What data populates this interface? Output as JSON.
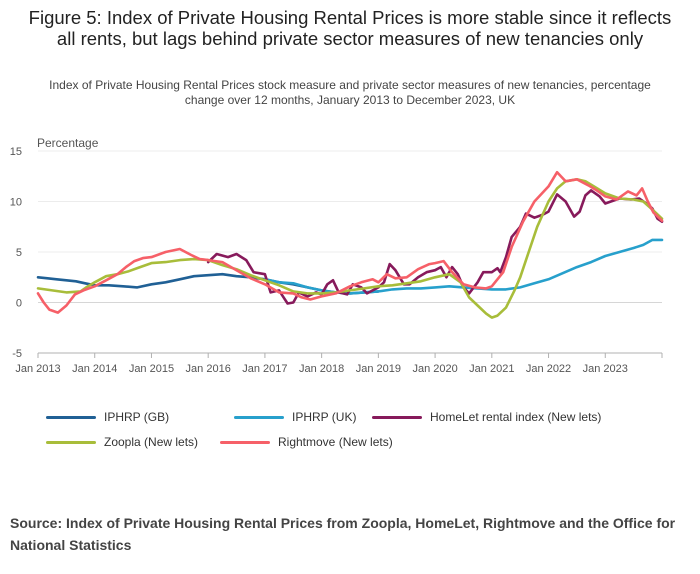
{
  "title": "Figure 5: Index of Private Housing Rental Prices is more stable since it reflects all rents, but lags behind private sector measures of new tenancies only",
  "subtitle": "Index of Private Housing Rental Prices stock measure and private sector measures of new tenancies, percentage change over 12 months, January 2013 to December 2023, UK",
  "source": "Source: Index of Private Housing Rental Prices from Zoopla, HomeLet, Rightmove and the Office for National Statistics",
  "chart_data": {
    "type": "line",
    "title": "Figure 5: Index of Private Housing Rental Prices is more stable since it reflects all rents, but lags behind private sector measures of new tenancies only",
    "ylabel": "Percentage",
    "xlabel": "",
    "ylim": [
      -5,
      15
    ],
    "yticks": [
      "15",
      "10",
      "5",
      "0",
      "-5"
    ],
    "ytick_values": [
      15,
      10,
      5,
      0,
      -5
    ],
    "xlim": [
      2013.0,
      2024.0
    ],
    "xticks": [
      "Jan 2013",
      "Jan 2014",
      "Jan 2015",
      "Jan 2016",
      "Jan 2017",
      "Jan 2018",
      "Jan 2019",
      "Jan 2020",
      "Jan 2021",
      "Jan 2022",
      "Jan 2023"
    ],
    "xtick_values": [
      2013,
      2014,
      2015,
      2016,
      2017,
      2018,
      2019,
      2020,
      2021,
      2022,
      2023
    ],
    "grid": "horizontal",
    "legend_position": "bottom",
    "series": [
      {
        "name": "IPHRP (GB)",
        "color": "#206095",
        "points": [
          [
            2013.0,
            2.5
          ],
          [
            2013.17,
            2.4
          ],
          [
            2013.33,
            2.3
          ],
          [
            2013.5,
            2.2
          ],
          [
            2013.67,
            2.1
          ],
          [
            2013.83,
            1.9
          ],
          [
            2014.0,
            1.7
          ],
          [
            2014.25,
            1.7
          ],
          [
            2014.5,
            1.6
          ],
          [
            2014.75,
            1.5
          ],
          [
            2015.0,
            1.8
          ],
          [
            2015.25,
            2.0
          ],
          [
            2015.5,
            2.3
          ],
          [
            2015.75,
            2.6
          ],
          [
            2016.0,
            2.7
          ],
          [
            2016.25,
            2.8
          ],
          [
            2016.5,
            2.6
          ],
          [
            2016.75,
            2.5
          ],
          [
            2017.0,
            2.3
          ],
          [
            2017.25,
            2.0
          ],
          [
            2017.5,
            1.8
          ],
          [
            2017.75,
            1.5
          ],
          [
            2018.0,
            1.2
          ],
          [
            2018.25,
            1.0
          ],
          [
            2018.5,
            0.9
          ],
          [
            2018.75,
            1.0
          ],
          [
            2019.0,
            1.1
          ]
        ]
      },
      {
        "name": "IPHRP (UK)",
        "color": "#27A0CC",
        "points": [
          [
            2017.0,
            2.3
          ],
          [
            2017.25,
            2.0
          ],
          [
            2017.5,
            1.9
          ],
          [
            2017.75,
            1.5
          ],
          [
            2018.0,
            1.2
          ],
          [
            2018.25,
            1.0
          ],
          [
            2018.5,
            0.9
          ],
          [
            2018.75,
            1.0
          ],
          [
            2019.0,
            1.1
          ],
          [
            2019.25,
            1.3
          ],
          [
            2019.5,
            1.4
          ],
          [
            2019.75,
            1.4
          ],
          [
            2020.0,
            1.5
          ],
          [
            2020.25,
            1.6
          ],
          [
            2020.5,
            1.5
          ],
          [
            2020.75,
            1.4
          ],
          [
            2021.0,
            1.3
          ],
          [
            2021.25,
            1.3
          ],
          [
            2021.5,
            1.5
          ],
          [
            2021.75,
            1.9
          ],
          [
            2022.0,
            2.3
          ],
          [
            2022.25,
            2.9
          ],
          [
            2022.5,
            3.5
          ],
          [
            2022.75,
            4.0
          ],
          [
            2023.0,
            4.6
          ],
          [
            2023.25,
            5.0
          ],
          [
            2023.5,
            5.4
          ],
          [
            2023.67,
            5.7
          ],
          [
            2023.83,
            6.2
          ],
          [
            2024.0,
            6.2
          ]
        ]
      },
      {
        "name": "HomeLet rental index (New lets)",
        "color": "#871A5B",
        "points": [
          [
            2016.0,
            4.0
          ],
          [
            2016.15,
            4.8
          ],
          [
            2016.35,
            4.5
          ],
          [
            2016.5,
            4.8
          ],
          [
            2016.67,
            4.2
          ],
          [
            2016.8,
            3.0
          ],
          [
            2017.0,
            2.8
          ],
          [
            2017.1,
            1.0
          ],
          [
            2017.25,
            1.2
          ],
          [
            2017.33,
            0.5
          ],
          [
            2017.4,
            -0.1
          ],
          [
            2017.5,
            0.0
          ],
          [
            2017.6,
            1.0
          ],
          [
            2017.75,
            0.6
          ],
          [
            2017.9,
            1.0
          ],
          [
            2018.0,
            0.8
          ],
          [
            2018.1,
            1.8
          ],
          [
            2018.2,
            2.2
          ],
          [
            2018.3,
            1.0
          ],
          [
            2018.45,
            0.8
          ],
          [
            2018.55,
            1.8
          ],
          [
            2018.7,
            1.5
          ],
          [
            2018.8,
            0.9
          ],
          [
            2019.0,
            1.5
          ],
          [
            2019.1,
            2.0
          ],
          [
            2019.2,
            3.8
          ],
          [
            2019.3,
            3.2
          ],
          [
            2019.45,
            1.8
          ],
          [
            2019.55,
            1.8
          ],
          [
            2019.7,
            2.5
          ],
          [
            2019.85,
            3.0
          ],
          [
            2020.0,
            3.2
          ],
          [
            2020.1,
            3.5
          ],
          [
            2020.2,
            2.5
          ],
          [
            2020.3,
            3.5
          ],
          [
            2020.4,
            2.8
          ],
          [
            2020.5,
            1.5
          ],
          [
            2020.6,
            0.9
          ],
          [
            2020.75,
            2.0
          ],
          [
            2020.85,
            3.0
          ],
          [
            2021.0,
            3.0
          ],
          [
            2021.1,
            3.4
          ],
          [
            2021.15,
            3.0
          ],
          [
            2021.25,
            4.5
          ],
          [
            2021.35,
            6.5
          ],
          [
            2021.5,
            7.5
          ],
          [
            2021.6,
            8.8
          ],
          [
            2021.75,
            8.4
          ],
          [
            2021.9,
            8.7
          ],
          [
            2022.0,
            9.0
          ],
          [
            2022.15,
            10.7
          ],
          [
            2022.3,
            10.0
          ],
          [
            2022.45,
            8.5
          ],
          [
            2022.55,
            9.0
          ],
          [
            2022.65,
            10.6
          ],
          [
            2022.75,
            11.1
          ],
          [
            2022.9,
            10.5
          ],
          [
            2023.0,
            9.8
          ],
          [
            2023.1,
            10.0
          ],
          [
            2023.25,
            10.3
          ],
          [
            2023.45,
            10.2
          ],
          [
            2023.6,
            10.3
          ],
          [
            2023.75,
            9.7
          ],
          [
            2023.83,
            9.3
          ],
          [
            2023.92,
            8.3
          ],
          [
            2024.0,
            8.0
          ]
        ]
      },
      {
        "name": "Zoopla (New lets)",
        "color": "#A8BD3A",
        "points": [
          [
            2013.0,
            1.4
          ],
          [
            2013.25,
            1.2
          ],
          [
            2013.5,
            1.0
          ],
          [
            2013.75,
            1.1
          ],
          [
            2013.85,
            1.5
          ],
          [
            2014.0,
            2.0
          ],
          [
            2014.2,
            2.6
          ],
          [
            2014.4,
            2.8
          ],
          [
            2014.6,
            3.1
          ],
          [
            2014.8,
            3.5
          ],
          [
            2015.0,
            3.9
          ],
          [
            2015.25,
            4.0
          ],
          [
            2015.5,
            4.2
          ],
          [
            2015.75,
            4.3
          ],
          [
            2016.0,
            4.2
          ],
          [
            2016.25,
            3.7
          ],
          [
            2016.5,
            3.3
          ],
          [
            2016.75,
            2.7
          ],
          [
            2017.0,
            2.2
          ],
          [
            2017.25,
            1.7
          ],
          [
            2017.5,
            1.1
          ],
          [
            2017.75,
            0.9
          ],
          [
            2018.0,
            0.9
          ],
          [
            2018.25,
            1.0
          ],
          [
            2018.5,
            1.2
          ],
          [
            2018.75,
            1.4
          ],
          [
            2019.0,
            1.6
          ],
          [
            2019.25,
            1.7
          ],
          [
            2019.5,
            1.9
          ],
          [
            2019.75,
            2.1
          ],
          [
            2020.0,
            2.5
          ],
          [
            2020.25,
            2.8
          ],
          [
            2020.45,
            2.0
          ],
          [
            2020.6,
            0.5
          ],
          [
            2020.75,
            -0.3
          ],
          [
            2020.9,
            -1.1
          ],
          [
            2021.0,
            -1.5
          ],
          [
            2021.1,
            -1.3
          ],
          [
            2021.25,
            -0.5
          ],
          [
            2021.4,
            1.2
          ],
          [
            2021.5,
            2.5
          ],
          [
            2021.65,
            5.0
          ],
          [
            2021.8,
            7.5
          ],
          [
            2022.0,
            10.0
          ],
          [
            2022.15,
            11.3
          ],
          [
            2022.3,
            12.0
          ],
          [
            2022.5,
            12.2
          ],
          [
            2022.65,
            12.0
          ],
          [
            2022.8,
            11.5
          ],
          [
            2023.0,
            10.8
          ],
          [
            2023.25,
            10.3
          ],
          [
            2023.5,
            10.2
          ],
          [
            2023.67,
            10.0
          ],
          [
            2023.83,
            9.2
          ],
          [
            2024.0,
            8.3
          ]
        ]
      },
      {
        "name": "Rightmove (New lets)",
        "color": "#F66068",
        "points": [
          [
            2013.0,
            0.9
          ],
          [
            2013.1,
            0.0
          ],
          [
            2013.2,
            -0.7
          ],
          [
            2013.35,
            -1.0
          ],
          [
            2013.5,
            -0.3
          ],
          [
            2013.65,
            0.8
          ],
          [
            2013.8,
            1.2
          ],
          [
            2014.0,
            1.6
          ],
          [
            2014.2,
            2.2
          ],
          [
            2014.4,
            2.8
          ],
          [
            2014.55,
            3.5
          ],
          [
            2014.7,
            4.1
          ],
          [
            2014.85,
            4.4
          ],
          [
            2015.0,
            4.5
          ],
          [
            2015.25,
            5.0
          ],
          [
            2015.5,
            5.3
          ],
          [
            2015.7,
            4.7
          ],
          [
            2015.85,
            4.3
          ],
          [
            2016.0,
            4.2
          ],
          [
            2016.25,
            4.0
          ],
          [
            2016.5,
            3.2
          ],
          [
            2016.75,
            2.4
          ],
          [
            2017.0,
            1.8
          ],
          [
            2017.25,
            1.0
          ],
          [
            2017.5,
            0.9
          ],
          [
            2017.65,
            0.5
          ],
          [
            2017.8,
            0.3
          ],
          [
            2018.0,
            0.6
          ],
          [
            2018.25,
            0.9
          ],
          [
            2018.5,
            1.6
          ],
          [
            2018.7,
            2.0
          ],
          [
            2018.9,
            2.3
          ],
          [
            2019.0,
            2.0
          ],
          [
            2019.15,
            2.8
          ],
          [
            2019.3,
            2.4
          ],
          [
            2019.5,
            2.5
          ],
          [
            2019.7,
            3.3
          ],
          [
            2019.9,
            3.8
          ],
          [
            2020.0,
            3.9
          ],
          [
            2020.15,
            4.1
          ],
          [
            2020.3,
            3.0
          ],
          [
            2020.5,
            1.8
          ],
          [
            2020.7,
            1.5
          ],
          [
            2020.9,
            1.4
          ],
          [
            2021.0,
            1.6
          ],
          [
            2021.2,
            3.0
          ],
          [
            2021.35,
            5.5
          ],
          [
            2021.55,
            8.0
          ],
          [
            2021.75,
            10.0
          ],
          [
            2022.0,
            11.5
          ],
          [
            2022.15,
            12.9
          ],
          [
            2022.3,
            12.0
          ],
          [
            2022.5,
            12.2
          ],
          [
            2022.7,
            11.6
          ],
          [
            2022.85,
            11.1
          ],
          [
            2023.0,
            10.5
          ],
          [
            2023.2,
            10.2
          ],
          [
            2023.4,
            11.0
          ],
          [
            2023.55,
            10.6
          ],
          [
            2023.65,
            11.3
          ],
          [
            2023.75,
            10.0
          ],
          [
            2023.85,
            8.9
          ],
          [
            2024.0,
            8.1
          ]
        ]
      }
    ]
  }
}
